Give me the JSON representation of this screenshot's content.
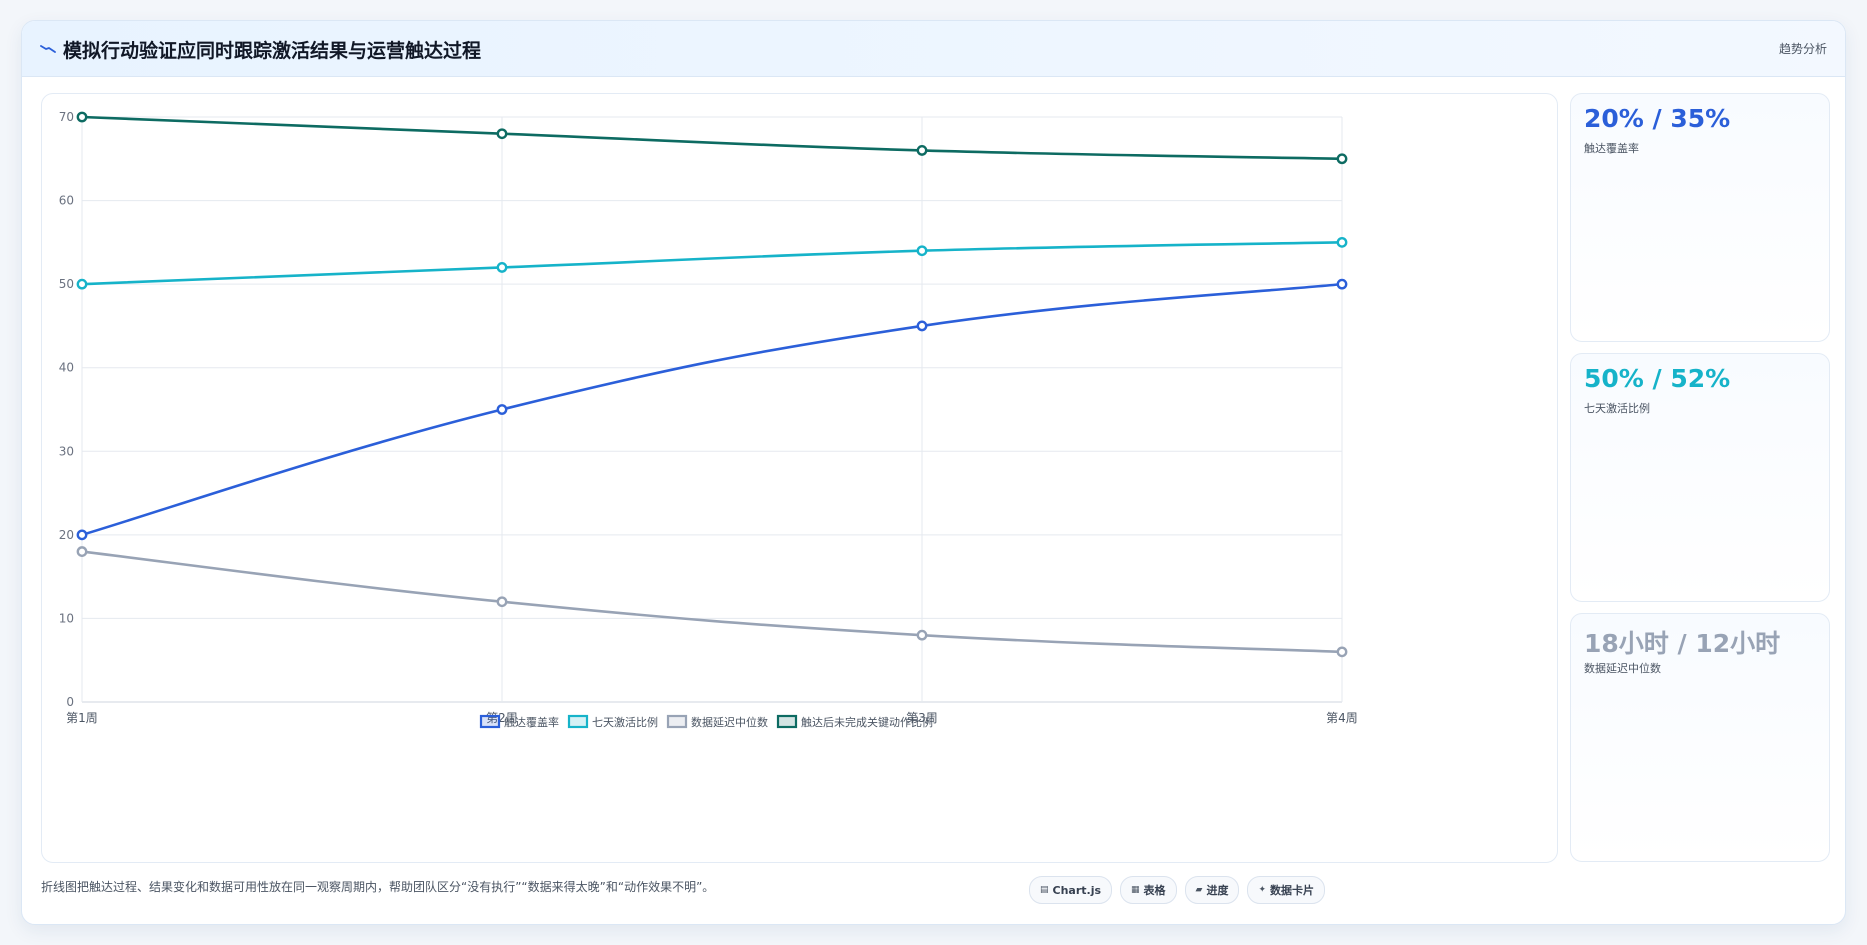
{
  "header": {
    "title": "模拟行动验证应同时跟踪激活结果与运营触达过程",
    "tag": "趋势分析",
    "icon": "trend-line-icon"
  },
  "chart_data": {
    "type": "line",
    "categories": [
      "第1周",
      "第2周",
      "第3周",
      "第4周"
    ],
    "series": [
      {
        "name": "触达覆盖率",
        "values": [
          20,
          35,
          45,
          50
        ],
        "color": "#2b5fd9"
      },
      {
        "name": "七天激活比例",
        "values": [
          50,
          52,
          54,
          55
        ],
        "color": "#16b3c9"
      },
      {
        "name": "数据延迟中位数",
        "values": [
          18,
          12,
          8,
          6
        ],
        "color": "#98a3b5"
      },
      {
        "name": "触达后未完成关键动作比例",
        "values": [
          70,
          68,
          66,
          65
        ],
        "color": "#0d6b62"
      }
    ],
    "ylim": [
      0,
      70
    ],
    "yticks": [
      0,
      10,
      20,
      30,
      40,
      50,
      60,
      70
    ],
    "grid": true,
    "legend": "bottom"
  },
  "kpis": [
    {
      "value": "20% / 35%",
      "label": "触达覆盖率",
      "color": "#2b5fd9"
    },
    {
      "value": "50% / 52%",
      "label": "七天激活比例",
      "color": "#16b3c9"
    },
    {
      "value": "18小时 / 12小时",
      "label": "数据延迟中位数",
      "color": "#98a3b5"
    }
  ],
  "footnote": "折线图把触达过程、结果变化和数据可用性放在同一观察周期内，帮助团队区分“没有执行”“数据来得太晚”和“动作效果不明”。",
  "chips": [
    {
      "icon": "chart-icon",
      "glyph": "▤",
      "label": "Chart.js"
    },
    {
      "icon": "table-icon",
      "glyph": "▦",
      "label": "表格"
    },
    {
      "icon": "progress-icon",
      "glyph": "▰",
      "label": "进度"
    },
    {
      "icon": "card-icon",
      "glyph": "✦",
      "label": "数据卡片"
    }
  ]
}
